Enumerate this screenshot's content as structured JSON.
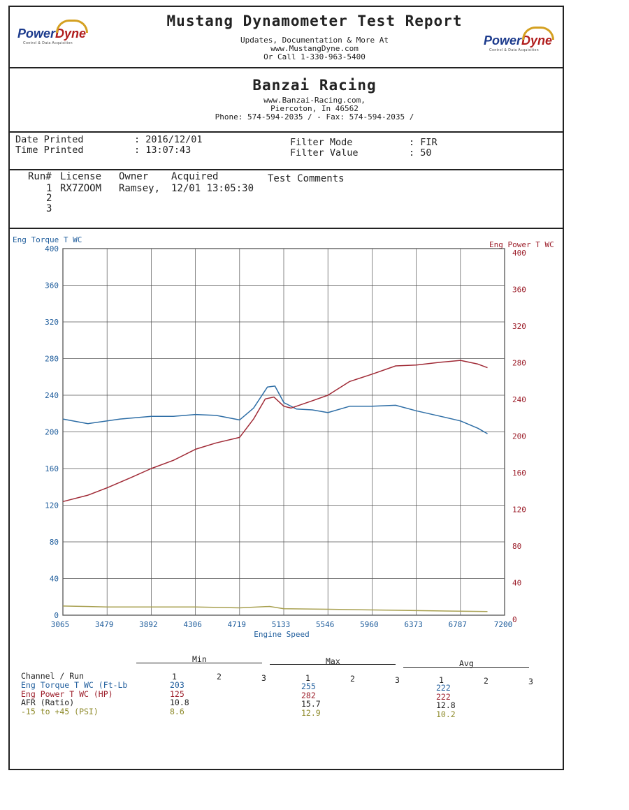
{
  "header": {
    "logo_text_a": "Power",
    "logo_text_b": "Dyne",
    "logo_sub": "Control & Data Acquisition",
    "title": "Mustang Dynamometer Test Report",
    "line1": "Updates, Documentation & More At",
    "line2": "www.MustangDyne.com",
    "line3": "Or Call 1-330-963-5400"
  },
  "shop": {
    "name": "Banzai Racing",
    "web": "www.Banzai-Racing.com,",
    "city": "Piercoton, In  46562",
    "phone": "Phone: 574-594-2035 /  - Fax: 574-594-2035 /"
  },
  "meta": {
    "date_label": "Date Printed",
    "date_value": ": 2016/12/01",
    "time_label": "Time Printed",
    "time_value": ": 13:07:43",
    "filter_mode_label": "Filter Mode",
    "filter_mode_value": ": FIR",
    "filter_value_label": "Filter Value",
    "filter_value_value": ": 50"
  },
  "runs": {
    "headers": [
      "Run#",
      "License",
      "Owner",
      "Acquired",
      "Test Comments"
    ],
    "rows": [
      {
        "run": "1",
        "license": "RX7ZOOM",
        "owner": "Ramsey,",
        "acquired": "12/01 13:05:30"
      },
      {
        "run": "2"
      },
      {
        "run": "3"
      }
    ]
  },
  "chart_data": {
    "type": "line",
    "xlabel": "Engine Speed",
    "ylabel_left": "Eng Torque T WC",
    "ylabel_right": "Eng Power T WC",
    "xlim": [
      3065,
      7200
    ],
    "ylim": [
      0,
      400
    ],
    "x_ticks": [
      "3065",
      "3479",
      "3892",
      "4306",
      "4719",
      "5133",
      "5546",
      "5960",
      "6373",
      "6787",
      "7200"
    ],
    "y_ticks": [
      0,
      40,
      80,
      120,
      160,
      200,
      240,
      280,
      320,
      360,
      400
    ],
    "grid": true,
    "series": [
      {
        "name": "Eng Torque T WC (Ft-Lb",
        "color": "#2e6ea6",
        "points": [
          [
            3065,
            214
          ],
          [
            3300,
            209
          ],
          [
            3600,
            214
          ],
          [
            3892,
            217
          ],
          [
            4100,
            217
          ],
          [
            4306,
            219
          ],
          [
            4500,
            218
          ],
          [
            4719,
            213
          ],
          [
            4850,
            226
          ],
          [
            4980,
            249
          ],
          [
            5050,
            250
          ],
          [
            5133,
            232
          ],
          [
            5250,
            225
          ],
          [
            5400,
            224
          ],
          [
            5546,
            221
          ],
          [
            5750,
            228
          ],
          [
            5960,
            228
          ],
          [
            6180,
            229
          ],
          [
            6373,
            223
          ],
          [
            6600,
            217
          ],
          [
            6787,
            212
          ],
          [
            6950,
            204
          ],
          [
            7040,
            198
          ]
        ]
      },
      {
        "name": "Eng Power T WC (HP)",
        "color": "#a02a36",
        "points": [
          [
            3065,
            124
          ],
          [
            3300,
            131
          ],
          [
            3479,
            139
          ],
          [
            3700,
            150
          ],
          [
            3892,
            160
          ],
          [
            4100,
            169
          ],
          [
            4306,
            181
          ],
          [
            4500,
            188
          ],
          [
            4719,
            194
          ],
          [
            4850,
            214
          ],
          [
            4960,
            236
          ],
          [
            5040,
            238
          ],
          [
            5133,
            228
          ],
          [
            5200,
            226
          ],
          [
            5400,
            234
          ],
          [
            5546,
            240
          ],
          [
            5750,
            255
          ],
          [
            5960,
            263
          ],
          [
            6180,
            272
          ],
          [
            6373,
            273
          ],
          [
            6600,
            276
          ],
          [
            6787,
            278
          ],
          [
            6950,
            274
          ],
          [
            7040,
            270
          ]
        ]
      },
      {
        "name": "-15 to +45 (PSI)",
        "color": "#a8a050",
        "points": [
          [
            3065,
            10
          ],
          [
            3479,
            9
          ],
          [
            4306,
            9
          ],
          [
            4719,
            8
          ],
          [
            5000,
            9.5
          ],
          [
            5133,
            7
          ],
          [
            5546,
            6.5
          ],
          [
            6373,
            5
          ],
          [
            7040,
            4
          ]
        ]
      }
    ]
  },
  "stats": {
    "group_headers": [
      "Min",
      "Max",
      "Avg"
    ],
    "run_labels": [
      "1",
      "2",
      "3"
    ],
    "channel_header": "Channel / Run",
    "channels": [
      {
        "name": "Eng Torque T WC (Ft-Lb",
        "min": "203",
        "max": "255",
        "avg": "222",
        "color": "#1f5d9c"
      },
      {
        "name": "Eng Power T WC (HP)",
        "min": "125",
        "max": "282",
        "avg": "222",
        "color": "#9c1e2a"
      },
      {
        "name": "AFR (Ratio)",
        "min": "10.8",
        "max": "15.7",
        "avg": "12.8",
        "color": "#222222"
      },
      {
        "name": "-15 to +45 (PSI)",
        "min": "8.6",
        "max": "12.9",
        "avg": "10.2",
        "color": "#8e8a2a"
      }
    ]
  }
}
